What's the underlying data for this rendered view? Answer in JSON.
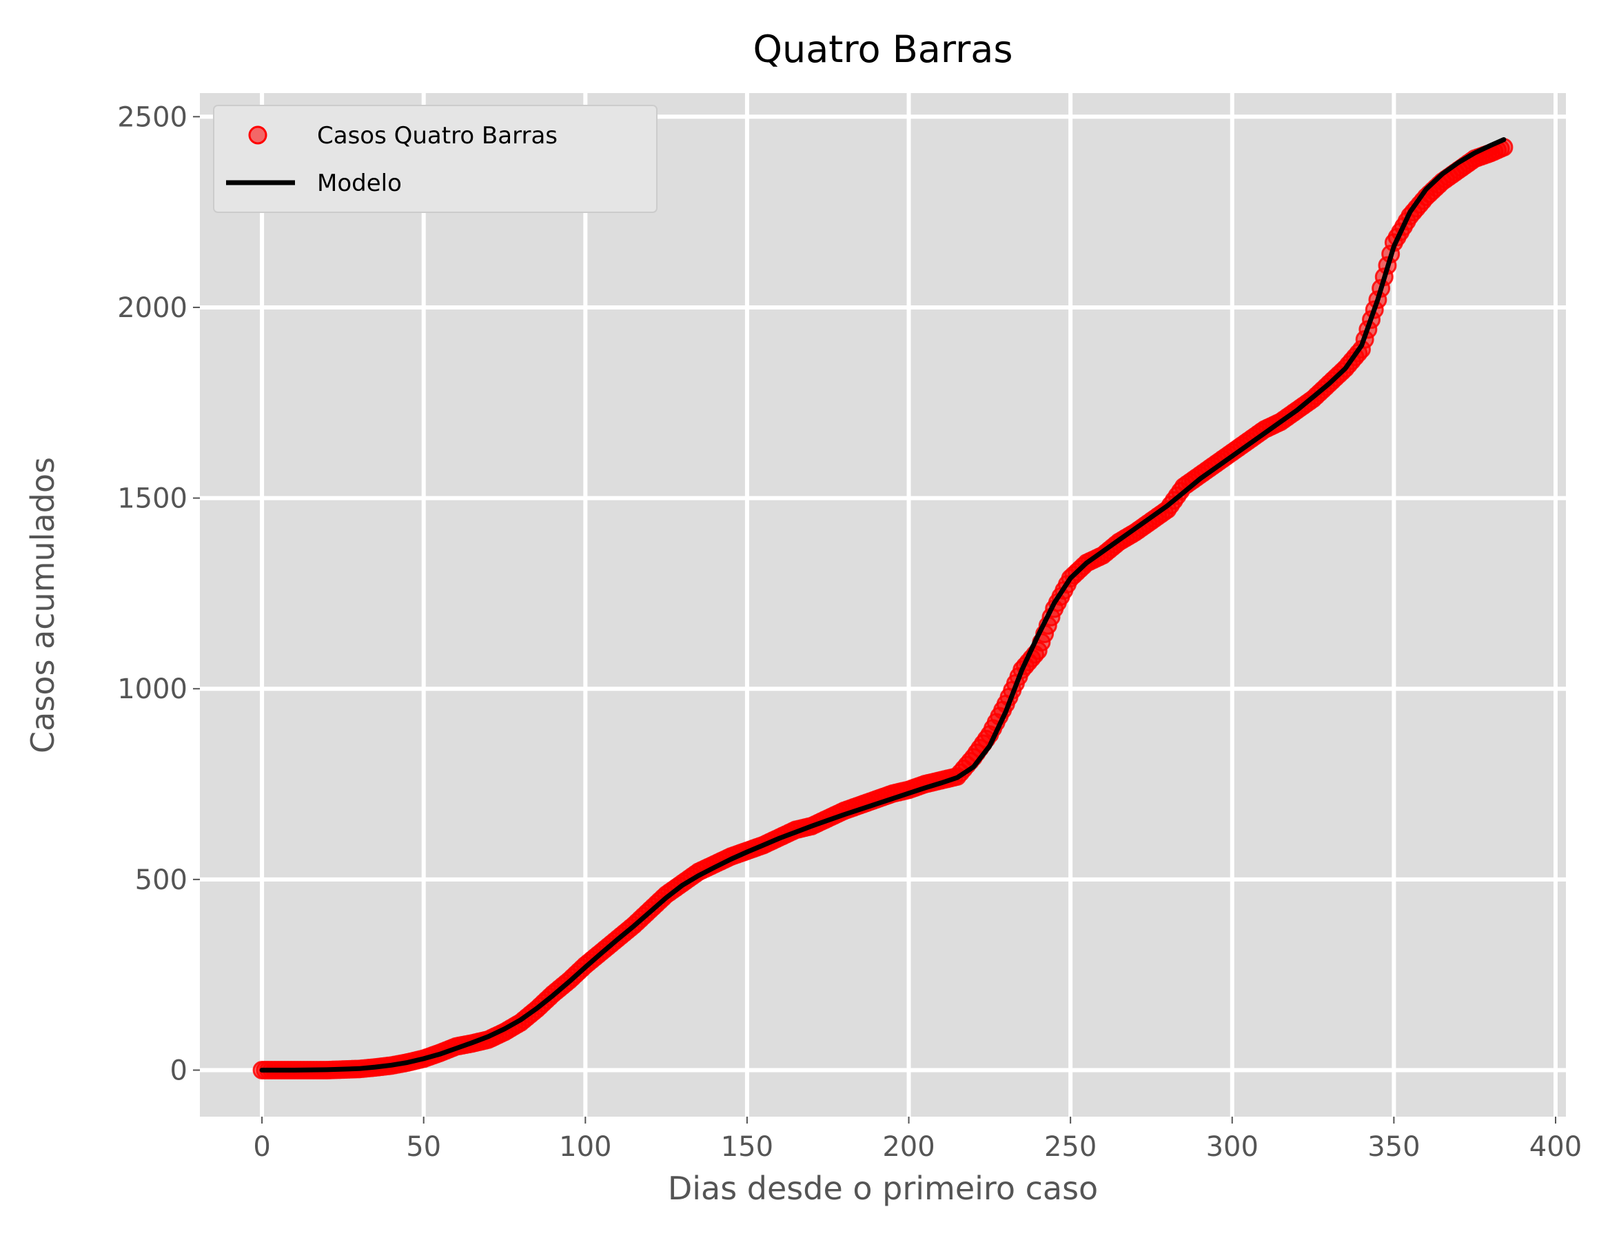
{
  "chart_data": {
    "type": "line",
    "title": "Quatro Barras",
    "xlabel": "Dias desde o primeiro caso",
    "ylabel": "Casos acumulados",
    "xlim": [
      -19.2,
      403.2
    ],
    "ylim": [
      -122,
      2562
    ],
    "xticks": [
      0,
      50,
      100,
      150,
      200,
      250,
      300,
      350,
      400
    ],
    "yticks": [
      0,
      500,
      1000,
      1500,
      2000,
      2500
    ],
    "grid": true,
    "legend_position": "top-left",
    "legend": [
      "Casos Quatro Barras",
      "Modelo"
    ],
    "colors": {
      "observed": "#ff0000",
      "model": "#000000",
      "background": "#dddddd",
      "grid": "#ffffff"
    },
    "series": [
      {
        "name": "Casos Quatro Barras",
        "style": "scatter",
        "x": [
          0,
          10,
          20,
          30,
          35,
          40,
          45,
          50,
          55,
          60,
          65,
          70,
          75,
          80,
          85,
          90,
          95,
          100,
          105,
          110,
          115,
          120,
          125,
          130,
          135,
          140,
          145,
          150,
          155,
          160,
          165,
          170,
          175,
          180,
          185,
          190,
          195,
          200,
          205,
          210,
          215,
          220,
          225,
          230,
          235,
          240,
          245,
          250,
          255,
          260,
          265,
          270,
          275,
          280,
          285,
          290,
          295,
          300,
          305,
          310,
          315,
          320,
          325,
          330,
          335,
          340,
          345,
          350,
          355,
          360,
          365,
          370,
          375,
          380,
          384
        ],
        "y": [
          0,
          0,
          0,
          3,
          7,
          12,
          20,
          30,
          45,
          62,
          70,
          80,
          100,
          125,
          160,
          200,
          235,
          275,
          310,
          345,
          380,
          420,
          460,
          490,
          520,
          540,
          560,
          575,
          590,
          610,
          630,
          640,
          660,
          680,
          695,
          710,
          725,
          735,
          750,
          760,
          770,
          820,
          880,
          960,
          1050,
          1100,
          1210,
          1290,
          1330,
          1350,
          1385,
          1410,
          1440,
          1470,
          1530,
          1560,
          1590,
          1620,
          1650,
          1680,
          1700,
          1730,
          1760,
          1800,
          1840,
          1890,
          2020,
          2170,
          2240,
          2290,
          2330,
          2360,
          2390,
          2405,
          2420
        ]
      },
      {
        "name": "Modelo",
        "style": "line",
        "x": [
          0,
          10,
          20,
          30,
          35,
          40,
          45,
          50,
          55,
          60,
          65,
          70,
          75,
          80,
          85,
          90,
          95,
          100,
          105,
          110,
          115,
          120,
          125,
          130,
          135,
          140,
          145,
          150,
          155,
          160,
          165,
          170,
          175,
          180,
          185,
          190,
          195,
          200,
          205,
          210,
          215,
          220,
          225,
          230,
          235,
          240,
          245,
          250,
          255,
          260,
          265,
          270,
          275,
          280,
          285,
          290,
          295,
          300,
          305,
          310,
          315,
          320,
          325,
          330,
          335,
          340,
          345,
          350,
          355,
          360,
          365,
          370,
          375,
          380,
          384
        ],
        "y": [
          0,
          0,
          1,
          4,
          8,
          13,
          20,
          30,
          42,
          57,
          72,
          88,
          108,
          132,
          162,
          196,
          232,
          270,
          307,
          343,
          378,
          415,
          452,
          485,
          510,
          532,
          553,
          572,
          590,
          608,
          624,
          640,
          655,
          670,
          684,
          698,
          712,
          726,
          740,
          753,
          767,
          795,
          850,
          940,
          1050,
          1140,
          1225,
          1290,
          1330,
          1360,
          1390,
          1420,
          1450,
          1480,
          1515,
          1550,
          1580,
          1610,
          1640,
          1670,
          1700,
          1730,
          1765,
          1800,
          1840,
          1900,
          2020,
          2160,
          2250,
          2310,
          2350,
          2380,
          2405,
          2425,
          2440
        ]
      }
    ]
  }
}
